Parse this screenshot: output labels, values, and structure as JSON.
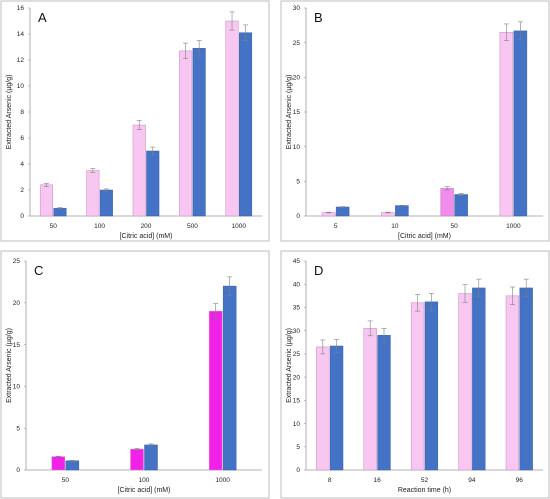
{
  "chart_data": [
    {
      "type": "bar",
      "panel_label": "A",
      "categories": [
        "50",
        "100",
        "200",
        "500",
        "1000"
      ],
      "series": [
        {
          "values": [
            2.4,
            3.5,
            7.0,
            12.7,
            15.0
          ],
          "errors": [
            0.12,
            0.15,
            0.35,
            0.6,
            0.7
          ],
          "color": "#f7c6f1"
        },
        {
          "values": [
            0.6,
            2.0,
            5.0,
            12.9,
            14.1
          ],
          "errors": [
            0.05,
            0.08,
            0.3,
            0.6,
            0.6
          ],
          "color": "#4472c4"
        }
      ],
      "xlabel": "[Citric acid] (mM)",
      "ylabel": "Extracted Arsenic (µg/g)",
      "ylim": [
        0,
        16
      ],
      "yticks": [
        0,
        2,
        4,
        6,
        8,
        10,
        12,
        14,
        16
      ],
      "grid": false
    },
    {
      "type": "bar",
      "panel_label": "B",
      "categories": [
        "5",
        "10",
        "50",
        "1000"
      ],
      "series": [
        {
          "values": [
            0.5,
            0.5,
            4.0,
            26.5
          ],
          "errors": [
            0.05,
            0.05,
            0.25,
            1.2
          ],
          "color": "#f7c6f1",
          "highlight": {
            "index": 2,
            "color": "#f08cec"
          }
        },
        {
          "values": [
            1.3,
            1.5,
            3.1,
            26.7
          ],
          "errors": [
            0.05,
            0.05,
            0.15,
            1.3
          ],
          "color": "#4472c4"
        }
      ],
      "xlabel": "[Citric acid] (mM)",
      "ylabel": "Extracted Arsenic (µg/g)",
      "ylim": [
        0,
        30
      ],
      "yticks": [
        0,
        5,
        10,
        15,
        20,
        25,
        30
      ],
      "grid": false
    },
    {
      "type": "bar",
      "panel_label": "C",
      "categories": [
        "50",
        "100",
        "1000"
      ],
      "series": [
        {
          "values": [
            1.6,
            2.5,
            19.0
          ],
          "errors": [
            0.05,
            0.08,
            0.9
          ],
          "color": "#f221e6"
        },
        {
          "values": [
            1.1,
            3.0,
            22.0
          ],
          "errors": [
            0.05,
            0.12,
            1.1
          ],
          "color": "#4472c4"
        }
      ],
      "xlabel": "[Citric acid] (mM)",
      "ylabel": "Extracted Arsenic (µg/g)",
      "ylim": [
        0,
        25
      ],
      "yticks": [
        0,
        5,
        10,
        15,
        20,
        25
      ],
      "grid": false
    },
    {
      "type": "bar",
      "panel_label": "D",
      "categories": [
        "8",
        "16",
        "52",
        "94",
        "96"
      ],
      "series": [
        {
          "values": [
            26.5,
            30.5,
            36.0,
            38.0,
            37.5
          ],
          "errors": [
            1.5,
            1.6,
            1.8,
            1.9,
            1.9
          ],
          "color": "#f7c6f1"
        },
        {
          "values": [
            26.7,
            29.0,
            36.2,
            39.2,
            39.2
          ],
          "errors": [
            1.4,
            1.5,
            1.8,
            1.9,
            1.9
          ],
          "color": "#4472c4"
        }
      ],
      "xlabel": "Reaction time (h)",
      "ylabel": "Extracted Arsenic (µg/g)",
      "ylim": [
        0,
        45
      ],
      "yticks": [
        0,
        5,
        10,
        15,
        20,
        25,
        30,
        35,
        40,
        45
      ],
      "grid": false
    }
  ]
}
